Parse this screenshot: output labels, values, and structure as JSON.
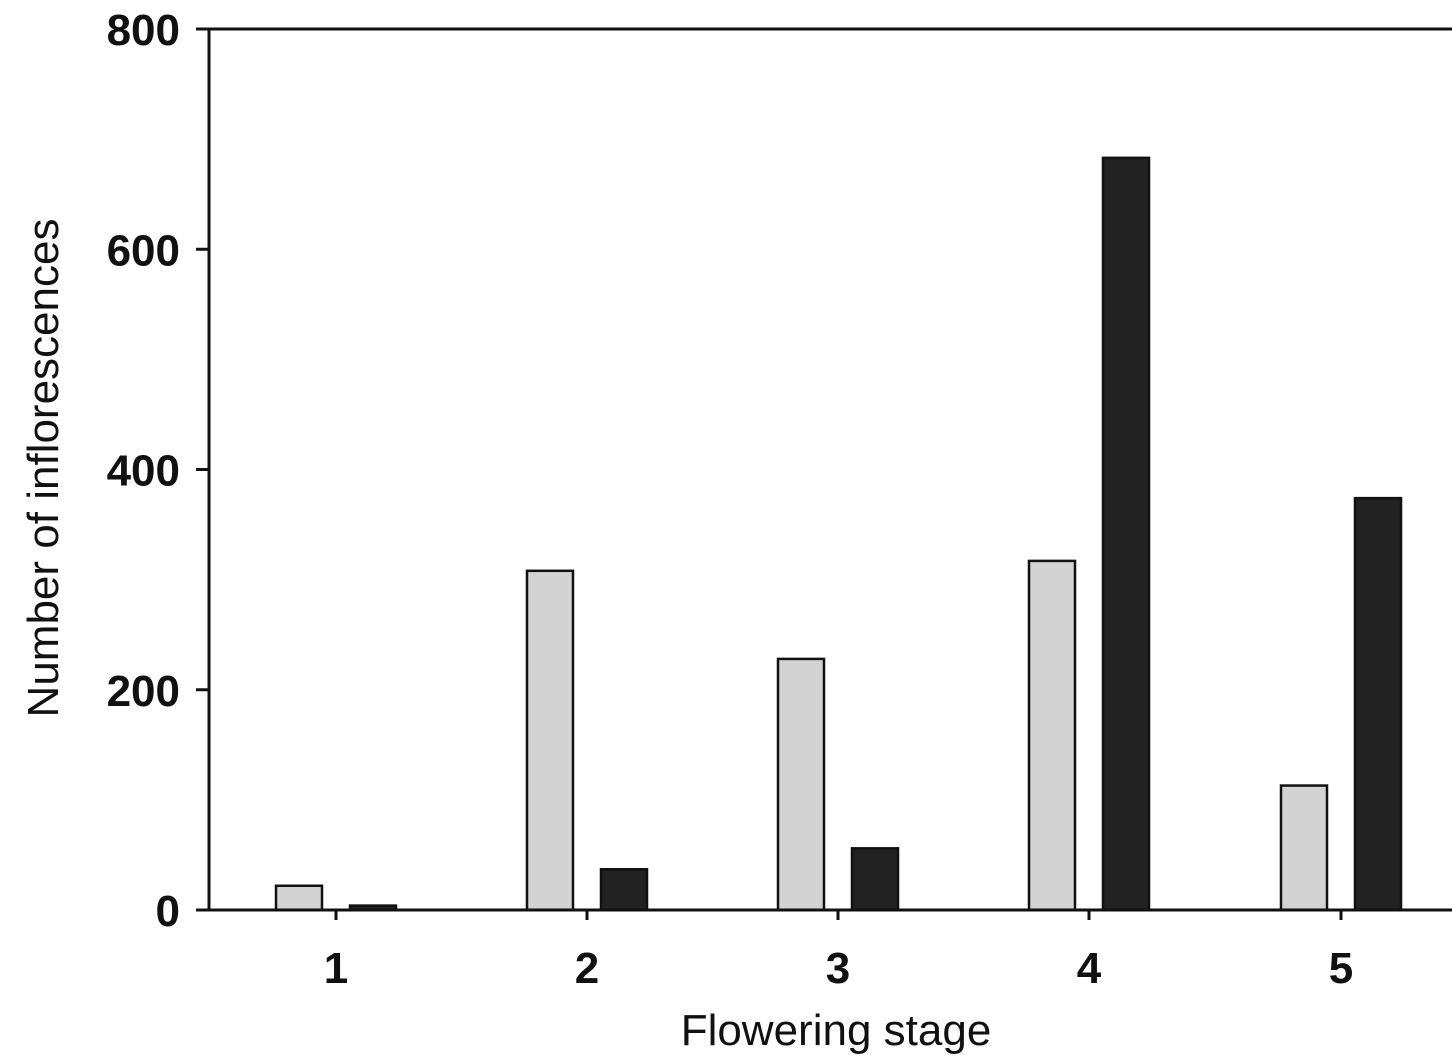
{
  "chart_data": {
    "type": "bar",
    "title": "",
    "xlabel": "Flowering stage",
    "ylabel": "Number of inflorescences",
    "categories": [
      "1",
      "2",
      "3",
      "4",
      "5"
    ],
    "series": [
      {
        "color": "#d3d3d3",
        "values": [
          22,
          308,
          228,
          317,
          113
        ]
      },
      {
        "color": "#222222",
        "values": [
          4,
          37,
          56,
          683,
          374
        ]
      }
    ],
    "ylim": [
      0,
      800
    ],
    "yticks": [
      "0",
      "200",
      "400",
      "600",
      "800"
    ],
    "grid": false,
    "legend": "none"
  }
}
